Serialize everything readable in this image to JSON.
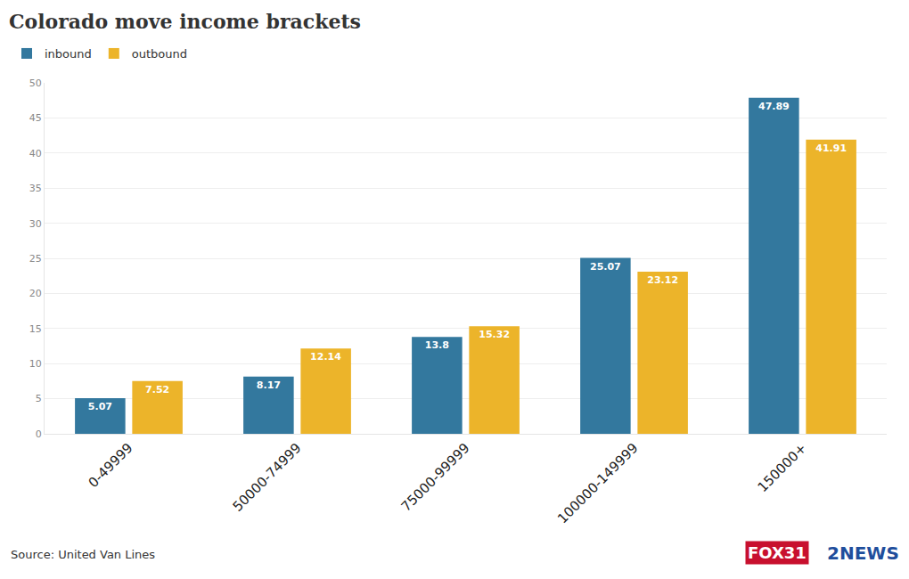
{
  "chart_data": {
    "type": "bar",
    "title": "Colorado move income brackets",
    "categories": [
      "0-49999",
      "50000-74999",
      "75000-99999",
      "100000-149999",
      "150000+"
    ],
    "series": [
      {
        "name": "inbound",
        "color": "#33789e",
        "values": [
          5.07,
          8.17,
          13.8,
          25.07,
          47.89
        ]
      },
      {
        "name": "outbound",
        "color": "#ecb42a",
        "values": [
          7.52,
          12.14,
          15.32,
          23.12,
          41.91
        ]
      }
    ],
    "ylim": [
      0,
      50
    ],
    "yticks": [
      0,
      5,
      10,
      15,
      20,
      25,
      30,
      35,
      40,
      45,
      50
    ],
    "grid": true,
    "legend": "top-left",
    "data_labels": true,
    "annotations": [
      {
        "text": "Source: United Van Lines"
      },
      {
        "text": "FOX31"
      },
      {
        "text": "2NEWS"
      }
    ]
  }
}
